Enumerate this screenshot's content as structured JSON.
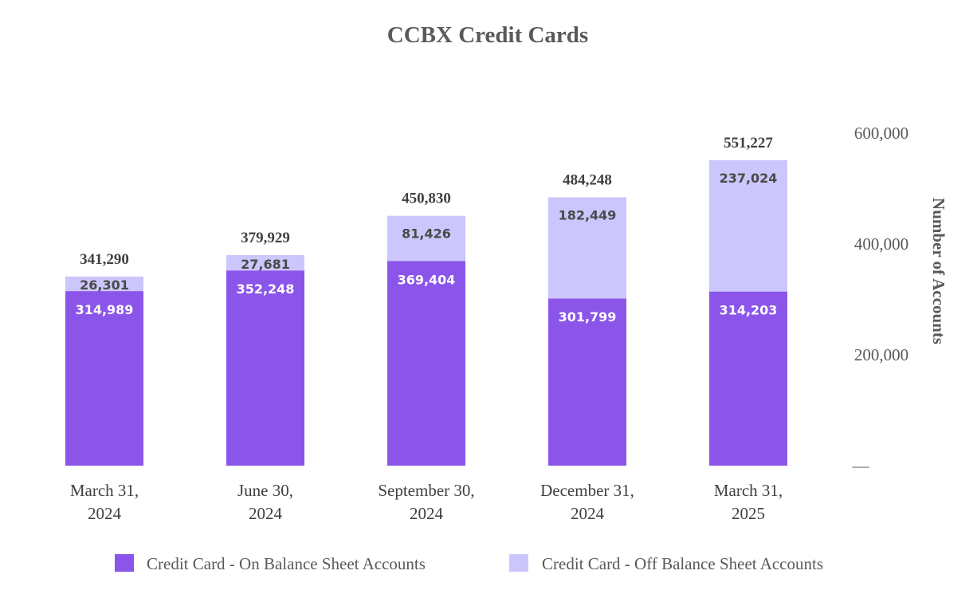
{
  "chart_data": {
    "type": "bar",
    "stacked": true,
    "title": "CCBX Credit Cards",
    "ylabel": "Number of Accounts",
    "xlabel": "",
    "ylim": [
      0,
      600000
    ],
    "yticks": [
      {
        "value": 0,
        "label": "—"
      },
      {
        "value": 200000,
        "label": "200,000"
      },
      {
        "value": 400000,
        "label": "400,000"
      },
      {
        "value": 600000,
        "label": "600,000"
      }
    ],
    "y_axis_position": "right",
    "grid": false,
    "legend_position": "bottom",
    "categories": [
      [
        "March 31,",
        "2024"
      ],
      [
        "June 30,",
        "2024"
      ],
      [
        "September 30,",
        "2024"
      ],
      [
        "December 31,",
        "2024"
      ],
      [
        "March 31,",
        "2025"
      ]
    ],
    "series": [
      {
        "name": "Credit Card -  On Balance Sheet Accounts",
        "color": "#8b55ea",
        "values": [
          314989,
          352248,
          369404,
          301799,
          314203
        ],
        "labels": [
          "314,989",
          "352,248",
          "369,404",
          "301,799",
          "314,203"
        ]
      },
      {
        "name": "Credit Card -  Off Balance Sheet Accounts",
        "color": "#cbc6fb",
        "values": [
          26301,
          27681,
          81426,
          182449,
          237024
        ],
        "labels": [
          "26,301",
          "27,681",
          "81,426",
          "182,449",
          "237,024"
        ]
      }
    ],
    "totals": [
      341290,
      379929,
      450830,
      484248,
      551227
    ],
    "total_labels": [
      "341,290",
      "379,929",
      "450,830",
      "484,248",
      "551,227"
    ]
  }
}
